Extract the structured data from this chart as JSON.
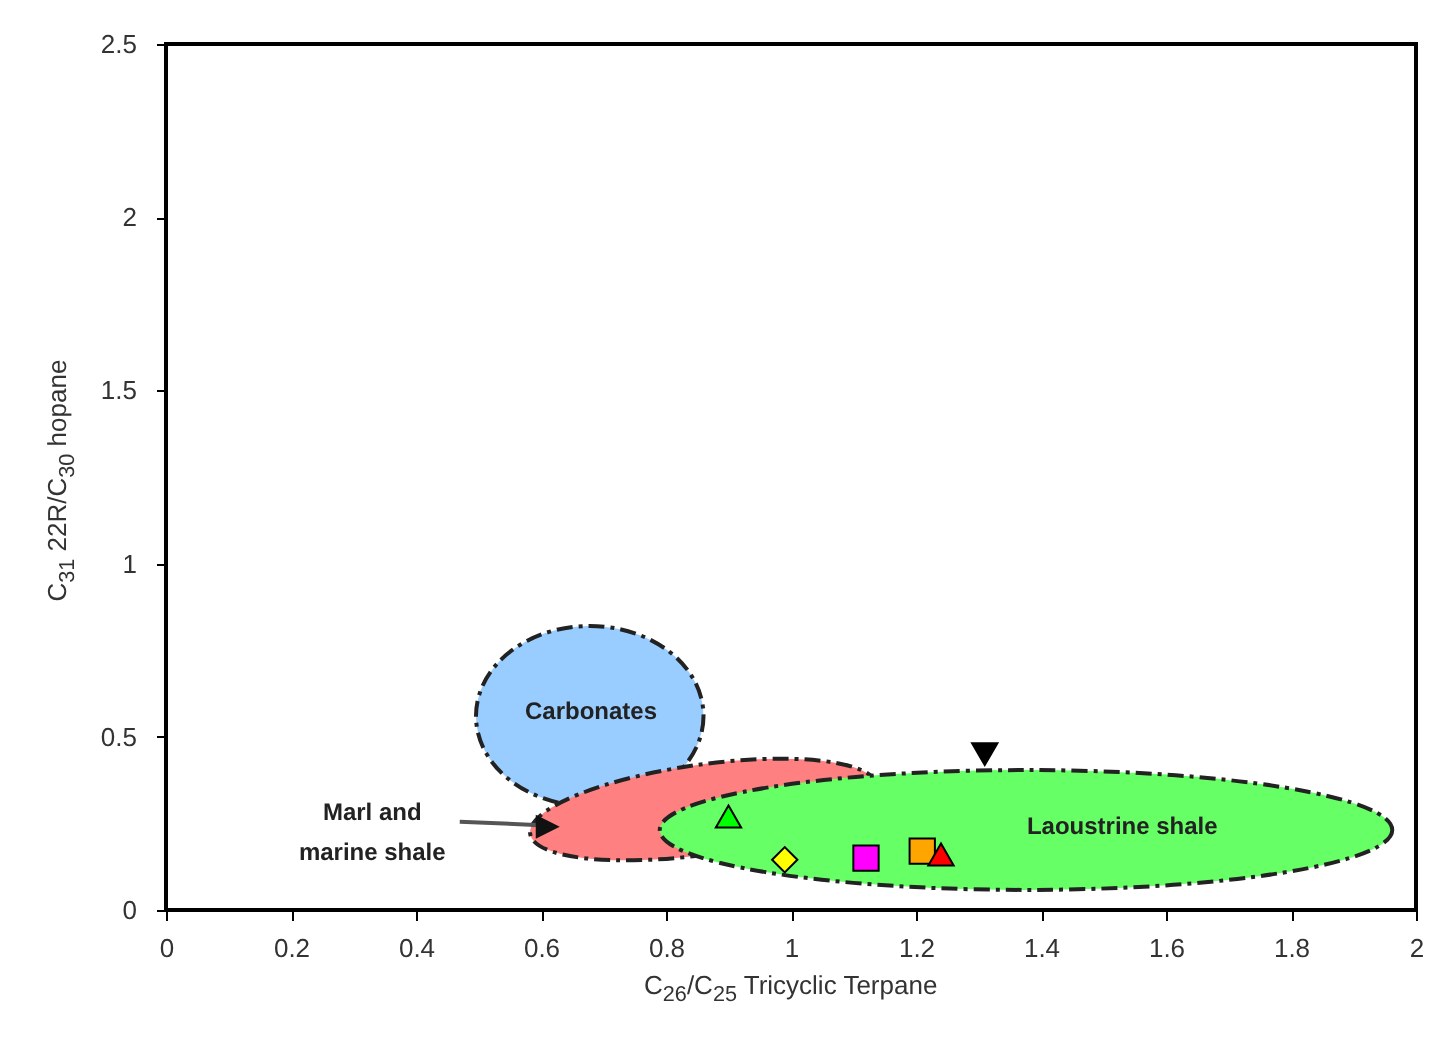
{
  "chart_data": {
    "type": "scatter",
    "xlabel": "C$_{26}$/C$_{25}$ Tricyclic Terpane",
    "ylabel": "C$_{31}$ 22R/C$_{30}$ hopane",
    "xlim": [
      0,
      2
    ],
    "xticks": [
      0,
      0.2,
      0.4,
      0.6,
      0.8,
      1,
      1.2,
      1.4,
      1.6,
      1.8,
      2
    ],
    "ylim": [
      0,
      2.5
    ],
    "yticks": [
      0,
      0.5,
      1,
      1.5,
      2,
      2.5
    ],
    "grid": false,
    "annotations": [
      "Carbonates",
      "Marl and marine shale",
      "Laoustrine shale"
    ],
    "series": [
      {
        "color": "#00ff00",
        "marker": "triangle",
        "x": [
          0.9
        ],
        "values": [
          0.27
        ]
      },
      {
        "color": "#ffff00",
        "marker": "diamond",
        "x": [
          0.99
        ],
        "values": [
          0.145
        ]
      },
      {
        "color": "#ff00ff",
        "marker": "square",
        "x": [
          1.12
        ],
        "values": [
          0.15
        ]
      },
      {
        "color": "#ffa500",
        "marker": "square",
        "x": [
          1.21
        ],
        "values": [
          0.17
        ]
      },
      {
        "color": "#ff0000",
        "marker": "triangle",
        "x": [
          1.24
        ],
        "values": [
          0.16
        ]
      },
      {
        "color": "#000000",
        "marker": "triangle-down",
        "x": [
          1.31
        ],
        "values": [
          0.45
        ]
      }
    ]
  }
}
